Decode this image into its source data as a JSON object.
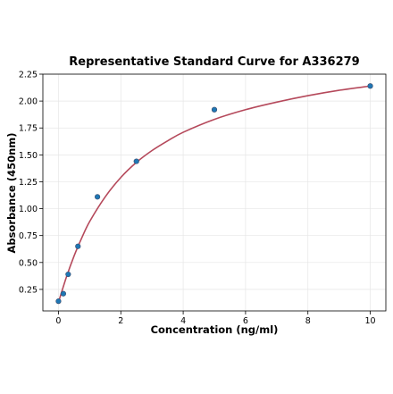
{
  "chart_data": {
    "type": "scatter",
    "title": "Representative Standard Curve for A336279",
    "xlabel": "Concentration (ng/ml)",
    "ylabel": "Absorbance (450nm)",
    "xlim": [
      -0.5,
      10.5
    ],
    "ylim": [
      0.05,
      2.25
    ],
    "xticks": [
      0,
      2,
      4,
      6,
      8,
      10
    ],
    "xtick_labels": [
      "0",
      "2",
      "4",
      "6",
      "8",
      "10"
    ],
    "yticks": [
      0.25,
      0.5,
      0.75,
      1.0,
      1.25,
      1.5,
      1.75,
      2.0,
      2.25
    ],
    "ytick_labels": [
      "0.25",
      "0.50",
      "0.75",
      "1.00",
      "1.25",
      "1.50",
      "1.75",
      "2.00",
      "2.25"
    ],
    "grid": true,
    "series": [
      {
        "kind": "points",
        "x": [
          0,
          0.156,
          0.312,
          0.625,
          1.25,
          2.5,
          5,
          10
        ],
        "y": [
          0.14,
          0.21,
          0.39,
          0.65,
          1.11,
          1.44,
          1.92,
          2.14
        ]
      },
      {
        "kind": "fit-curve",
        "x": [
          0,
          0.25,
          0.5,
          0.75,
          1,
          1.5,
          2,
          2.5,
          3,
          3.5,
          4,
          5,
          6,
          7,
          8,
          9,
          10
        ],
        "y": [
          0.13,
          0.36,
          0.56,
          0.73,
          0.88,
          1.11,
          1.29,
          1.43,
          1.54,
          1.63,
          1.71,
          1.83,
          1.92,
          1.99,
          2.05,
          2.1,
          2.14
        ]
      }
    ],
    "colors": {
      "points": "#1f77b4",
      "point_edge": "#3b4a6b",
      "curve": "#b5495b",
      "grid": "#e6e6e6",
      "axis": "#000000"
    }
  }
}
